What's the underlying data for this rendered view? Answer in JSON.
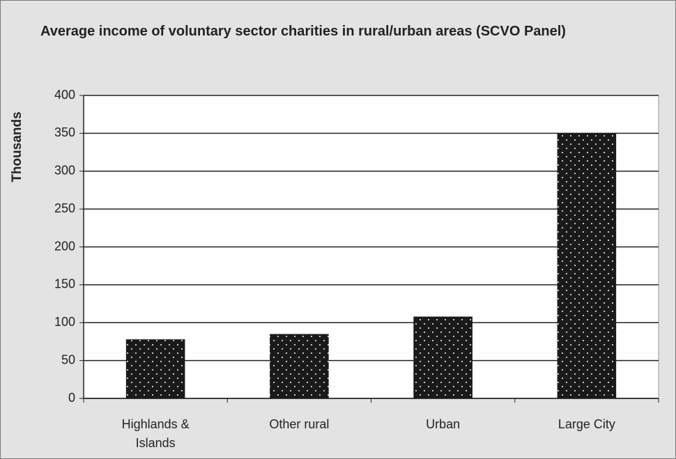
{
  "chart_data": {
    "type": "bar",
    "title": "Average income of voluntary sector charities in rural/urban areas (SCVO Panel)",
    "y_label": "Thousands",
    "categories": [
      "Highlands & Islands",
      "Other rural",
      "Urban",
      "Large City"
    ],
    "values": [
      78,
      85,
      108,
      350
    ],
    "color": "#1a1a1a",
    "ylim": [
      0,
      400
    ],
    "yticks": [
      0,
      50,
      100,
      150,
      200,
      250,
      300,
      350,
      400
    ],
    "grid": true
  }
}
